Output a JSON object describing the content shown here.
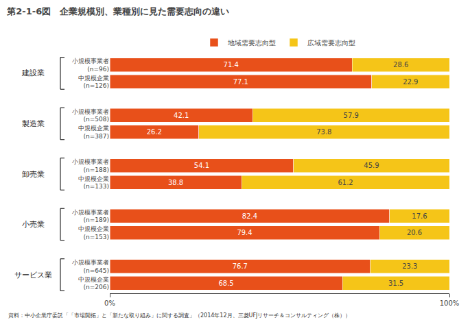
{
  "chart_data": {
    "type": "bar",
    "orientation": "horizontal",
    "stacked": true,
    "data_labels": true,
    "grid": false,
    "legend": "top",
    "figure_label": "第2-1-6図",
    "title": "企業規模別、業種別に見た需要志向の違い",
    "source": "資料：中小企業庁委託「「市場開拓」と「新たな取り組み」に関する調査」（2014年12月、三菱UFJリサーチ＆コンサルティング（株））",
    "groups": [
      "建設業",
      "建設業",
      "製造業",
      "製造業",
      "卸売業",
      "卸売業",
      "小売業",
      "小売業",
      "サービス業",
      "サービス業"
    ],
    "categories": [
      [
        "小規模事業者",
        "(n=96)"
      ],
      [
        "中規模企業",
        "(n=126)"
      ],
      [
        "小規模事業者",
        "(n=508)"
      ],
      [
        "中規模企業",
        "(n=387)"
      ],
      [
        "小規模事業者",
        "(n=188)"
      ],
      [
        "中規模企業",
        "(n=133)"
      ],
      [
        "小規模事業者",
        "(n=189)"
      ],
      [
        "中規模企業",
        "(n=153)"
      ],
      [
        "小規模事業者",
        "(n=645)"
      ],
      [
        "中規模企業",
        "(n=206)"
      ]
    ],
    "series": [
      {
        "name": "地域需要志向型",
        "color": "#E8501A",
        "values": [
          71.4,
          77.1,
          42.1,
          26.2,
          54.1,
          38.8,
          82.4,
          79.4,
          76.7,
          68.5
        ]
      },
      {
        "name": "広域需要志向型",
        "color": "#F5C518",
        "values": [
          28.6,
          22.9,
          57.9,
          73.8,
          45.9,
          61.2,
          17.6,
          20.6,
          23.3,
          31.5
        ]
      }
    ],
    "xlim": [
      0,
      100
    ],
    "xticks": [
      {
        "value": 0,
        "label": "0%"
      },
      {
        "value": 100,
        "label": "100%"
      }
    ]
  }
}
